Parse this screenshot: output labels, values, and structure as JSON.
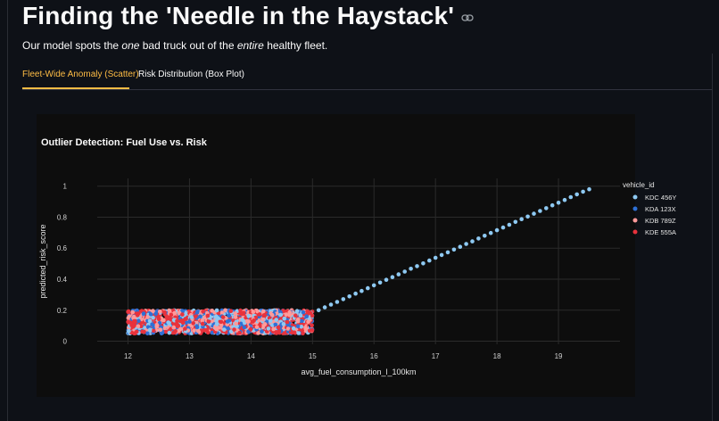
{
  "header": {
    "title": "Finding the 'Needle in the Haystack'",
    "subtitle_pre": "Our model spots the ",
    "subtitle_em1": "one",
    "subtitle_mid": " bad truck out of the ",
    "subtitle_em2": "entire",
    "subtitle_post": " healthy fleet.",
    "link_icon": "link-icon"
  },
  "tabs": [
    {
      "label": "Fleet-Wide Anomaly (Scatter)",
      "active": true
    },
    {
      "label": "Risk Distribution (Box Plot)",
      "active": false
    }
  ],
  "colors": {
    "accent": "#ffbd45",
    "KDC 456Y": "#8ec9f2",
    "KDA 123X": "#2e70d6",
    "KDB 789Z": "#ff9a9a",
    "KDE 555A": "#e8323c"
  },
  "chart_data": {
    "type": "scatter",
    "title": "Outlier Detection: Fuel Use vs. Risk",
    "xlabel": "avg_fuel_consumption_l_100km",
    "ylabel": "predicted_risk_score",
    "xlim": [
      11.5,
      20
    ],
    "ylim": [
      -0.02,
      1.05
    ],
    "xticks": [
      12,
      13,
      14,
      15,
      16,
      17,
      18,
      19
    ],
    "yticks": [
      0,
      0.2,
      0.4,
      0.6,
      0.8,
      1
    ],
    "legend_title": "vehicle_id",
    "legend_position": "right",
    "grid": true,
    "series": [
      {
        "name": "KDC 456Y",
        "x": [
          15.1,
          15.2,
          15.3,
          15.4,
          15.5,
          15.6,
          15.7,
          15.8,
          15.9,
          16.0,
          16.1,
          16.2,
          16.3,
          16.4,
          16.5,
          16.6,
          16.7,
          16.8,
          16.9,
          17.0,
          17.1,
          17.2,
          17.3,
          17.4,
          17.5,
          17.6,
          17.7,
          17.8,
          17.9,
          18.0,
          18.1,
          18.2,
          18.3,
          18.4,
          18.5,
          18.6,
          18.7,
          18.8,
          18.9,
          19.0,
          19.1,
          19.2,
          19.3,
          19.4,
          19.5
        ],
        "y": [
          0.2,
          0.218,
          0.236,
          0.253,
          0.271,
          0.289,
          0.307,
          0.324,
          0.342,
          0.36,
          0.378,
          0.396,
          0.413,
          0.431,
          0.449,
          0.467,
          0.484,
          0.502,
          0.52,
          0.538,
          0.556,
          0.573,
          0.591,
          0.609,
          0.627,
          0.644,
          0.662,
          0.68,
          0.698,
          0.716,
          0.733,
          0.751,
          0.769,
          0.787,
          0.804,
          0.822,
          0.84,
          0.858,
          0.876,
          0.893,
          0.911,
          0.929,
          0.947,
          0.964,
          0.98
        ]
      },
      {
        "name": "KDC 456Y",
        "cluster": {
          "x_range": [
            12,
            15
          ],
          "y_range": [
            0.05,
            0.2
          ],
          "count": 380
        }
      },
      {
        "name": "KDA 123X",
        "cluster": {
          "x_range": [
            12,
            15
          ],
          "y_range": [
            0.05,
            0.2
          ],
          "count": 380
        }
      },
      {
        "name": "KDB 789Z",
        "cluster": {
          "x_range": [
            12,
            15
          ],
          "y_range": [
            0.05,
            0.2
          ],
          "count": 420
        }
      },
      {
        "name": "KDE 555A",
        "cluster": {
          "x_range": [
            12,
            15
          ],
          "y_range": [
            0.05,
            0.2
          ],
          "count": 650
        }
      }
    ]
  }
}
